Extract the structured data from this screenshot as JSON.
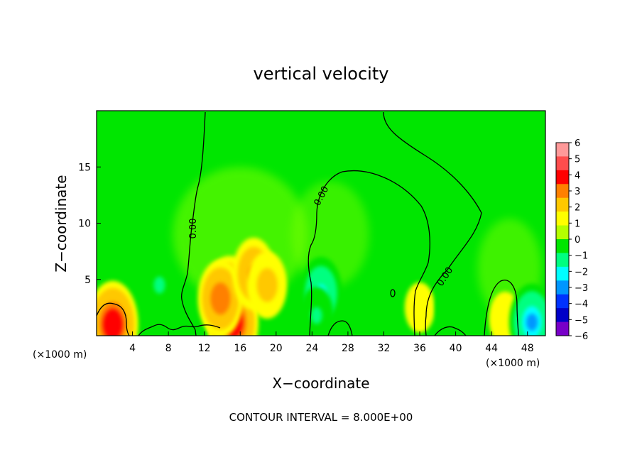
{
  "chart_data": {
    "type": "heatmap",
    "title": "vertical velocity",
    "xlabel": "X−coordinate",
    "ylabel": "Z−coordinate",
    "x_unit": "(×1000 m)",
    "y_unit": "(×1000 m)",
    "xlim": [
      0,
      50
    ],
    "ylim": [
      0,
      20
    ],
    "x_ticks": [
      4,
      8,
      12,
      16,
      20,
      24,
      28,
      32,
      36,
      40,
      44,
      48
    ],
    "y_ticks": [
      5,
      10,
      15
    ],
    "colorbar": {
      "ticks": [
        "6",
        "5",
        "4",
        "3",
        "2",
        "1",
        "0",
        "−1",
        "−2",
        "−3",
        "−4",
        "−5",
        "−6"
      ],
      "colors": [
        "#ff9999",
        "#ff4d4d",
        "#ff0000",
        "#ff8000",
        "#ffc800",
        "#ffff00",
        "#b4ff00",
        "#00e600",
        "#00ff80",
        "#00ffff",
        "#0096ff",
        "#0032ff",
        "#0000c8",
        "#7800c8"
      ]
    },
    "contour_labels": [
      "0.00",
      "0.00",
      "0.00"
    ],
    "features": [
      {
        "x": 14.8,
        "z": 3.0,
        "value": 5.0,
        "type": "updraft"
      },
      {
        "x": 15.2,
        "z": 1.2,
        "value": 4.5,
        "type": "updraft"
      },
      {
        "x": 13.8,
        "z": 3.3,
        "value": 3.5,
        "type": "updraft"
      },
      {
        "x": 17.5,
        "z": 5.5,
        "value": 3.0,
        "type": "updraft"
      },
      {
        "x": 19.0,
        "z": 4.5,
        "value": 2.5,
        "type": "updraft"
      },
      {
        "x": 1.8,
        "z": 1.0,
        "value": 4.5,
        "type": "updraft"
      },
      {
        "x": 45.5,
        "z": 1.5,
        "value": 1.2,
        "type": "updraft"
      },
      {
        "x": 36.0,
        "z": 2.5,
        "value": 0.8,
        "type": "updraft"
      },
      {
        "x": 25.0,
        "z": 3.8,
        "value": -3.0,
        "type": "downdraft"
      },
      {
        "x": 24.5,
        "z": 1.8,
        "value": -1.5,
        "type": "downdraft"
      },
      {
        "x": 7.0,
        "z": 4.5,
        "value": -1.5,
        "type": "downdraft"
      },
      {
        "x": 48.5,
        "z": 1.2,
        "value": -3.5,
        "type": "downdraft"
      },
      {
        "x": 39.5,
        "z": 2.5,
        "value": -1.0,
        "type": "downdraft"
      }
    ],
    "footer": "CONTOUR INTERVAL = 8.000E+00"
  }
}
